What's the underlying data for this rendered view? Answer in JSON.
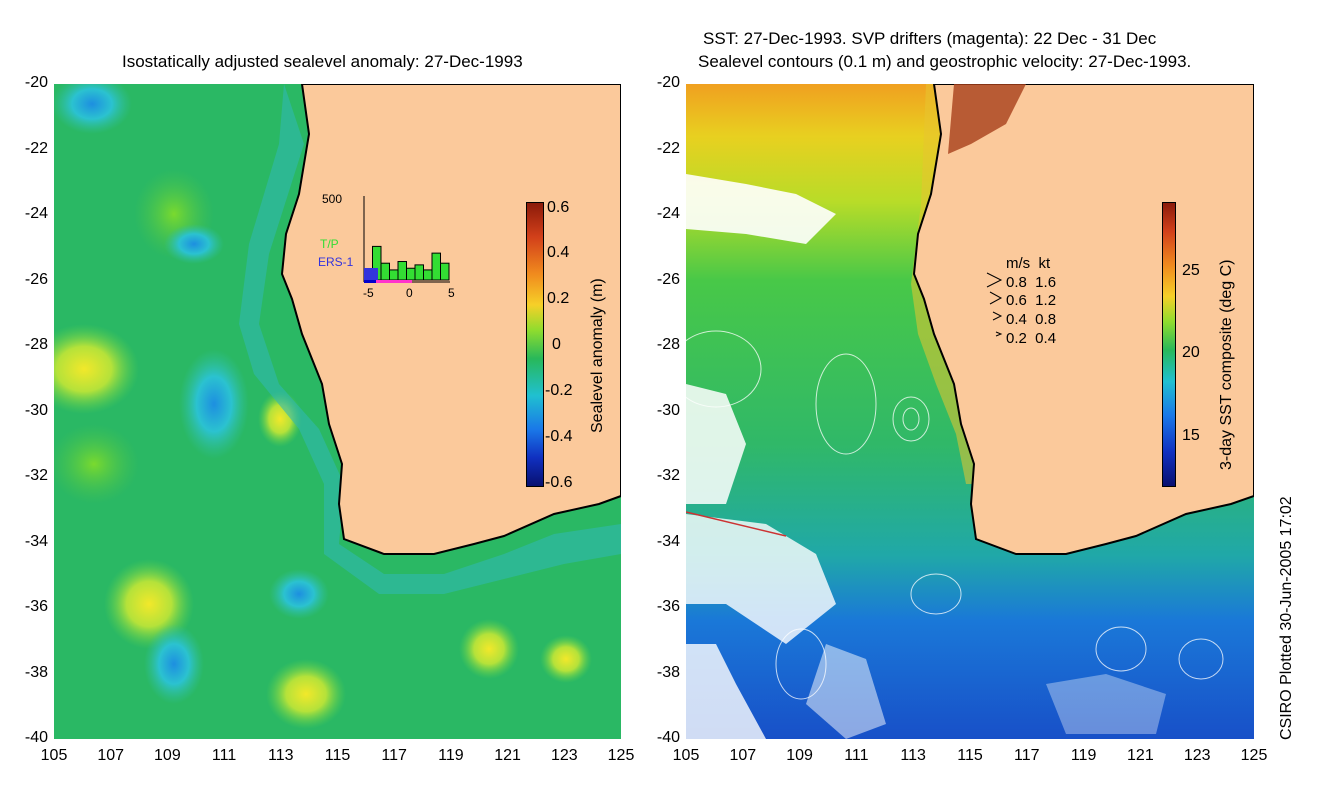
{
  "left_panel": {
    "title": "Isostatically adjusted sealevel anomaly: 27-Dec-1993",
    "colorbar": {
      "label": "Sealevel anomaly (m)",
      "ticks": [
        "0.6",
        "0.4",
        "0.2",
        "0",
        "-0.2",
        "-0.4",
        "-0.6"
      ]
    },
    "inset": {
      "ymax_label": "500",
      "tp_label": "T/P",
      "ers_label": "ERS-1",
      "x_ticks": [
        "-5",
        "0",
        "5"
      ],
      "tp_color": "#33dd33",
      "ers_color": "#3333dd",
      "bar_values": [
        60,
        200,
        100,
        60,
        110,
        70,
        90,
        60,
        160,
        100
      ]
    }
  },
  "right_panel": {
    "title_line1": "SST: 27-Dec-1993. SVP drifters (magenta): 22 Dec - 31 Dec",
    "title_line2": "Sealevel contours (0.1 m) and geostrophic velocity: 27-Dec-1993.",
    "colorbar": {
      "label": "3-day SST composite (deg C)",
      "ticks": [
        "25",
        "20",
        "15"
      ]
    },
    "velocity_legend": {
      "header": "m/s  kt",
      "rows": [
        "0.8  1.6",
        "0.6  1.2",
        "0.4  0.8",
        "0.2  0.4"
      ]
    }
  },
  "axes": {
    "y_ticks": [
      "-20",
      "-22",
      "-24",
      "-26",
      "-28",
      "-30",
      "-32",
      "-34",
      "-36",
      "-38",
      "-40"
    ],
    "x_ticks": [
      "105",
      "107",
      "109",
      "111",
      "113",
      "115",
      "117",
      "119",
      "121",
      "123",
      "125"
    ]
  },
  "footer": "CSIRO Plotted 30-Jun-2005 17:02",
  "colors": {
    "land": "#fbc99b",
    "ocean_left": "#22b86a",
    "coast": "#000000"
  }
}
